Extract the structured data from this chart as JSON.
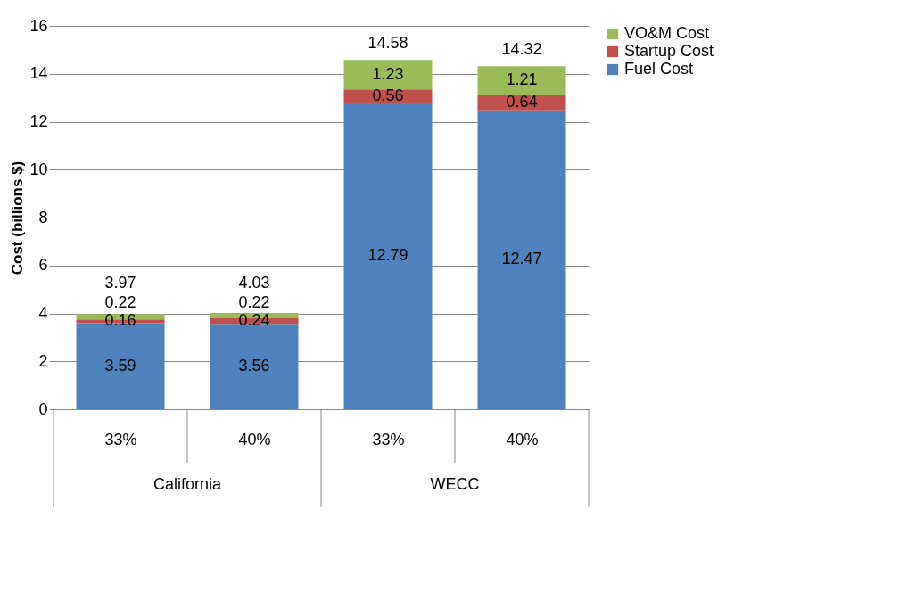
{
  "chart_data": {
    "type": "bar",
    "stacked": true,
    "ylabel": "Cost (billions $)",
    "categories": [
      "33%",
      "40%",
      "33%",
      "40%"
    ],
    "annotations": [
      "California",
      "WECC"
    ],
    "series": [
      {
        "name": "Fuel Cost",
        "color": "#4f81bd",
        "values": [
          3.59,
          3.56,
          12.79,
          12.47
        ]
      },
      {
        "name": "Startup Cost",
        "color": "#c0504d",
        "values": [
          0.16,
          0.24,
          0.56,
          0.64
        ]
      },
      {
        "name": "VO&M Cost",
        "color": "#9bbb59",
        "values": [
          0.22,
          0.22,
          1.23,
          1.21
        ]
      }
    ],
    "totals": [
      "3.97",
      "4.03",
      "14.58",
      "14.32"
    ],
    "data_labels": true,
    "ylim": [
      0,
      16
    ],
    "yticks": [
      0,
      2,
      4,
      6,
      8,
      10,
      12,
      14,
      16
    ],
    "grid": "y",
    "legend": "right"
  }
}
